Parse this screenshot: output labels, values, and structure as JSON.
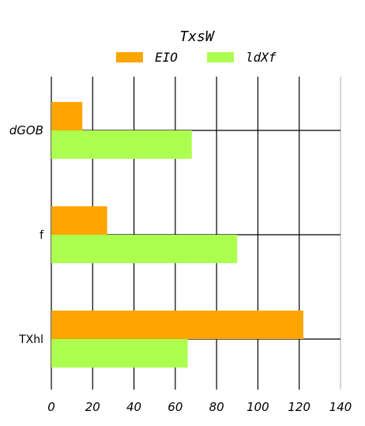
{
  "chart_data": {
    "type": "bar",
    "orientation": "horizontal",
    "title": "TxsW",
    "categories": [
      "dGOB",
      "f",
      "TXhl"
    ],
    "series": [
      {
        "name": "EIO",
        "color": "#ffa500",
        "values": [
          15,
          27,
          122
        ]
      },
      {
        "name": "ldXf",
        "color": "#adff4f",
        "values": [
          68,
          90,
          66
        ]
      }
    ],
    "xlim": [
      0,
      140
    ],
    "xticks": [
      "0",
      "20",
      "40",
      "60",
      "80",
      "100",
      "120",
      "140"
    ],
    "grid": true,
    "legend_position": "top-center"
  }
}
